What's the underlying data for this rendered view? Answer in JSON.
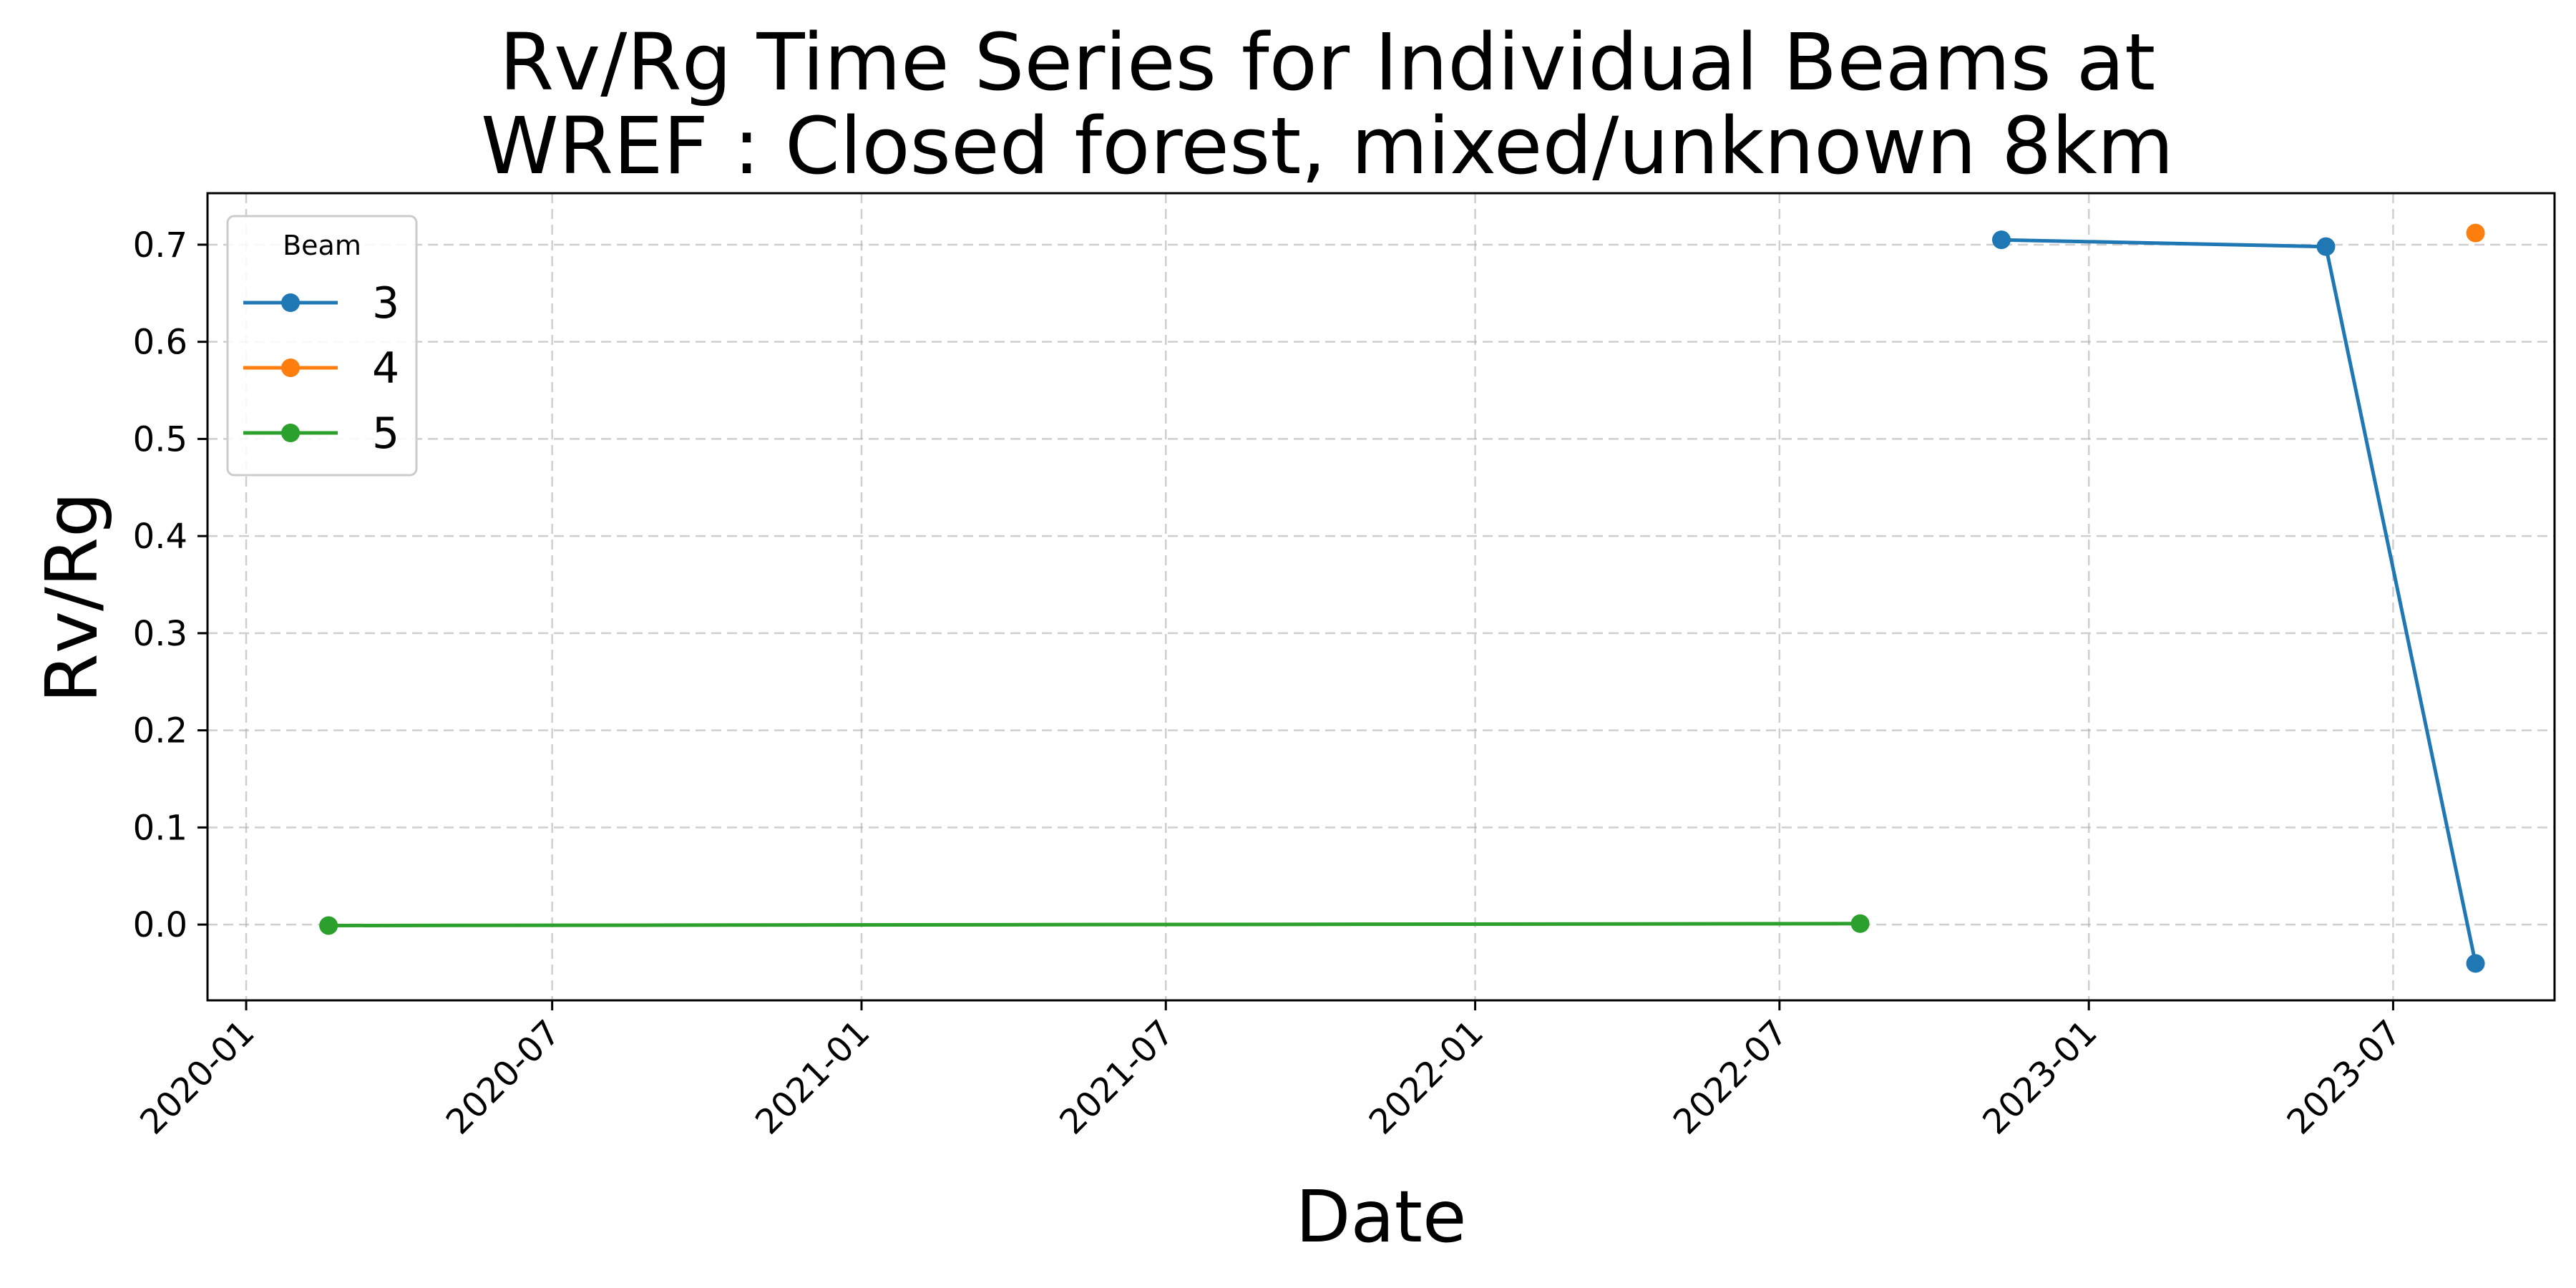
{
  "chart_data": {
    "type": "line",
    "title_line1": "Rv/Rg Time Series for Individual Beams at",
    "title_line2": "WREF : Closed forest, mixed/unknown 8km",
    "xlabel": "Date",
    "ylabel": "Rv/Rg",
    "x_ticks": [
      "2020-01",
      "2020-07",
      "2021-01",
      "2021-07",
      "2022-01",
      "2022-07",
      "2023-01",
      "2023-07"
    ],
    "y_ticks": [
      "0.0",
      "0.1",
      "0.2",
      "0.3",
      "0.4",
      "0.5",
      "0.6",
      "0.7"
    ],
    "xlim": [
      "2019-12-09",
      "2023-10-05"
    ],
    "ylim": [
      -0.078,
      0.753
    ],
    "grid": true,
    "legend_title": "Beam",
    "legend_position": "upper-left",
    "series": [
      {
        "name": "3",
        "color": "#1f77b4",
        "points": [
          {
            "x": "2022-11-10",
            "y": 0.705
          },
          {
            "x": "2023-05-22",
            "y": 0.698
          },
          {
            "x": "2023-08-19",
            "y": -0.04
          }
        ]
      },
      {
        "name": "4",
        "color": "#ff7f0e",
        "points": [
          {
            "x": "2023-08-19",
            "y": 0.712
          }
        ]
      },
      {
        "name": "5",
        "color": "#2ca02c",
        "points": [
          {
            "x": "2020-02-19",
            "y": -0.001
          },
          {
            "x": "2022-08-18",
            "y": 0.001
          }
        ]
      }
    ]
  }
}
